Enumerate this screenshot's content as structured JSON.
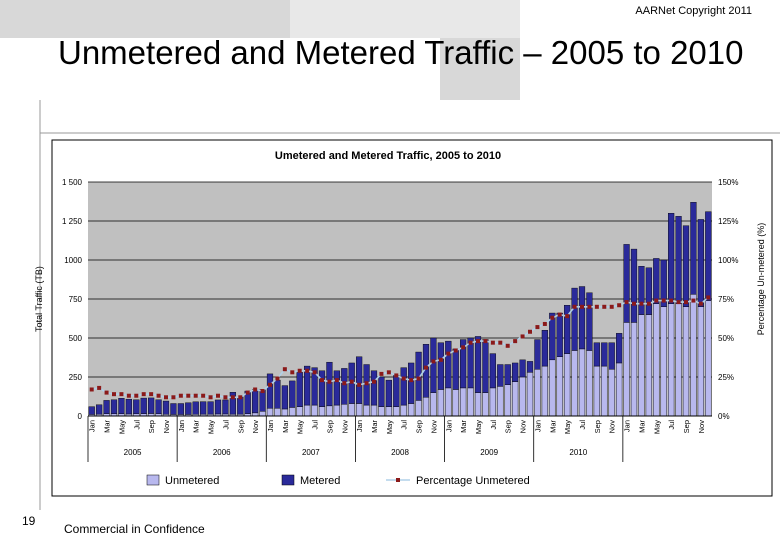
{
  "header": {
    "copyright": "AARNet Copyright 2011"
  },
  "slide": {
    "title": "Unmetered and Metered Traffic – 2005 to 2010",
    "page_number": "19",
    "footer": "Commercial in Confidence"
  },
  "colors": {
    "unmetered": "#b8b8ee",
    "metered": "#2a2a9a",
    "percentage_line": "#b0d0e8",
    "percentage_marker": "#8b1a1a",
    "plot_bg": "#c0c0c0"
  },
  "chart_data": {
    "type": "bar",
    "stacked": true,
    "title": "Umetered and Metered Traffic, 2005 to 2010",
    "ylabel": "Total Traffic (TB)",
    "y2label": "Percentage Un-metered (%)",
    "ylim": [
      0,
      1500
    ],
    "y2lim": [
      0,
      150
    ],
    "yticks": [
      "0",
      "250",
      "500",
      "750",
      "1000",
      "1 250",
      "1 500"
    ],
    "y2ticks": [
      "0%",
      "25%",
      "50%",
      "75%",
      "100%",
      "125%",
      "150%"
    ],
    "month_labels": [
      "Jan",
      "Mar",
      "May",
      "Jul",
      "Sep",
      "Nov"
    ],
    "years": [
      "2005",
      "2006",
      "2007",
      "2008",
      "2009",
      "2010"
    ],
    "grid": true,
    "legend": {
      "position": "bottom",
      "items": [
        "Unmetered",
        "Metered",
        "Percentage Unmetered"
      ]
    },
    "series": [
      {
        "name": "Unmetered",
        "values": [
          10,
          12,
          15,
          14,
          14,
          13,
          14,
          15,
          16,
          14,
          11,
          10,
          10,
          10,
          11,
          12,
          12,
          13,
          13,
          12,
          12,
          15,
          20,
          30,
          50,
          50,
          45,
          55,
          60,
          70,
          70,
          60,
          65,
          70,
          75,
          80,
          80,
          70,
          70,
          60,
          60,
          60,
          70,
          80,
          100,
          120,
          150,
          170,
          180,
          170,
          180,
          180,
          150,
          150,
          180,
          190,
          200,
          220,
          250,
          280,
          300,
          320,
          360,
          380,
          400,
          420,
          430,
          420,
          320,
          320,
          300,
          340,
          600,
          600,
          650,
          650,
          720,
          700,
          720,
          720,
          700,
          780,
          700,
          740
        ]
      },
      {
        "name": "Metered",
        "values": [
          50,
          60,
          85,
          90,
          100,
          95,
          90,
          100,
          100,
          90,
          85,
          70,
          70,
          75,
          80,
          80,
          80,
          90,
          90,
          140,
          110,
          145,
          150,
          140,
          220,
          180,
          150,
          170,
          220,
          250,
          240,
          230,
          280,
          220,
          230,
          260,
          300,
          260,
          220,
          190,
          170,
          200,
          240,
          260,
          310,
          340,
          350,
          300,
          300,
          260,
          310,
          320,
          360,
          340,
          220,
          140,
          130,
          120,
          110,
          70,
          190,
          230,
          300,
          280,
          310,
          400,
          400,
          370,
          150,
          150,
          170,
          190,
          500,
          470,
          310,
          300,
          290,
          300,
          580,
          560,
          520,
          590,
          560,
          570
        ]
      },
      {
        "name": "Percentage Unmetered",
        "axis": "y2",
        "values": [
          17,
          18,
          15,
          14,
          14,
          13,
          13,
          14,
          14,
          13,
          12,
          12,
          13,
          13,
          13,
          13,
          12,
          13,
          12,
          12,
          12,
          15,
          17,
          16,
          20,
          24,
          30,
          28,
          29,
          29,
          28,
          23,
          22,
          23,
          21,
          22,
          20,
          21,
          22,
          27,
          28,
          26,
          24,
          23,
          24,
          31,
          35,
          36,
          40,
          42,
          44,
          47,
          48,
          48,
          47,
          47,
          45,
          48,
          51,
          54,
          57,
          59,
          63,
          65,
          64,
          70,
          70,
          70,
          70,
          70,
          70,
          71,
          73,
          72,
          72,
          72,
          74,
          74,
          74,
          73,
          73,
          74,
          72,
          76
        ]
      }
    ]
  }
}
